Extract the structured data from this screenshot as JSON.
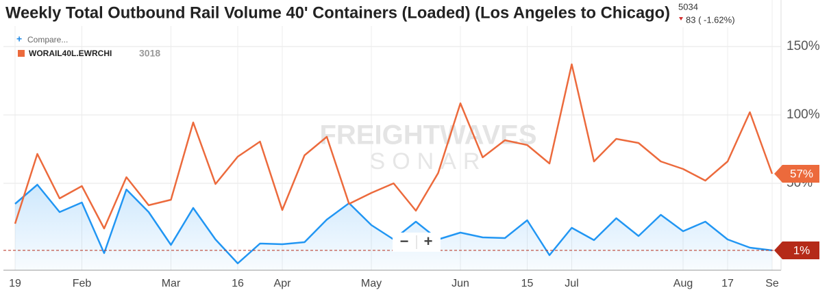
{
  "chart_data": {
    "type": "line",
    "title": "Weekly Total Outbound Rail Volume 40' Containers (Loaded) (Los Angeles to Chicago)",
    "header_value": "5034",
    "header_change": "83 ( -1.62%)",
    "compare_label": "Compare...",
    "watermark": [
      "FREIGHTWAVES",
      "SONAR"
    ],
    "zoom_controls": [
      "−",
      "+"
    ],
    "categories": [
      "19",
      null,
      null,
      "Feb",
      null,
      null,
      null,
      "Mar",
      null,
      null,
      "16",
      null,
      "Apr",
      null,
      null,
      null,
      "May",
      null,
      null,
      null,
      "Jun",
      null,
      null,
      "15",
      null,
      "Jul",
      null,
      null,
      null,
      null,
      "Aug",
      null,
      "17",
      null,
      "Se"
    ],
    "series": [
      {
        "name": "WORAIL40L.EWRCHI",
        "legend_value": "3018",
        "color": "#ec6a3c",
        "values": [
          20.5,
          71.5,
          39,
          48,
          17,
          54.5,
          34,
          38,
          94.5,
          49.5,
          69.5,
          80.5,
          30.5,
          70.5,
          84,
          35,
          43,
          50,
          30,
          57.5,
          108.5,
          69,
          81.5,
          78,
          64.5,
          137,
          66,
          82.5,
          79.5,
          66,
          60.5,
          52,
          66,
          102,
          57
        ],
        "value_labels": [
          null,
          null,
          null,
          null,
          null,
          null,
          null,
          null,
          null,
          null,
          null,
          null,
          null,
          null,
          null,
          null,
          null,
          null,
          null,
          null,
          null,
          null,
          null,
          null,
          null,
          null,
          null,
          null,
          null,
          null,
          null,
          null,
          null,
          null,
          "57%"
        ]
      },
      {
        "color": "#2196f3",
        "label_color": "#b52a18",
        "values": [
          35,
          49,
          29,
          36,
          -1,
          45.5,
          29,
          5,
          32,
          9,
          -8.5,
          6,
          5.5,
          7,
          23.5,
          35.5,
          19.5,
          9,
          22,
          9,
          14,
          10.5,
          10,
          23,
          -2.5,
          17.5,
          8.5,
          24.5,
          11.5,
          27,
          15,
          22,
          9,
          3,
          1
        ],
        "value_labels": [
          null,
          null,
          null,
          null,
          null,
          null,
          null,
          null,
          null,
          null,
          null,
          null,
          null,
          null,
          null,
          null,
          null,
          null,
          null,
          null,
          null,
          null,
          null,
          null,
          null,
          null,
          null,
          null,
          null,
          null,
          null,
          null,
          null,
          null,
          "1%"
        ]
      }
    ],
    "ylim": [
      -13.5,
      184
    ],
    "yticks": [
      {
        "value": 50,
        "label": "50%"
      },
      {
        "value": 100,
        "label": "100%"
      },
      {
        "value": 150,
        "label": "150%"
      }
    ],
    "grid": true
  }
}
